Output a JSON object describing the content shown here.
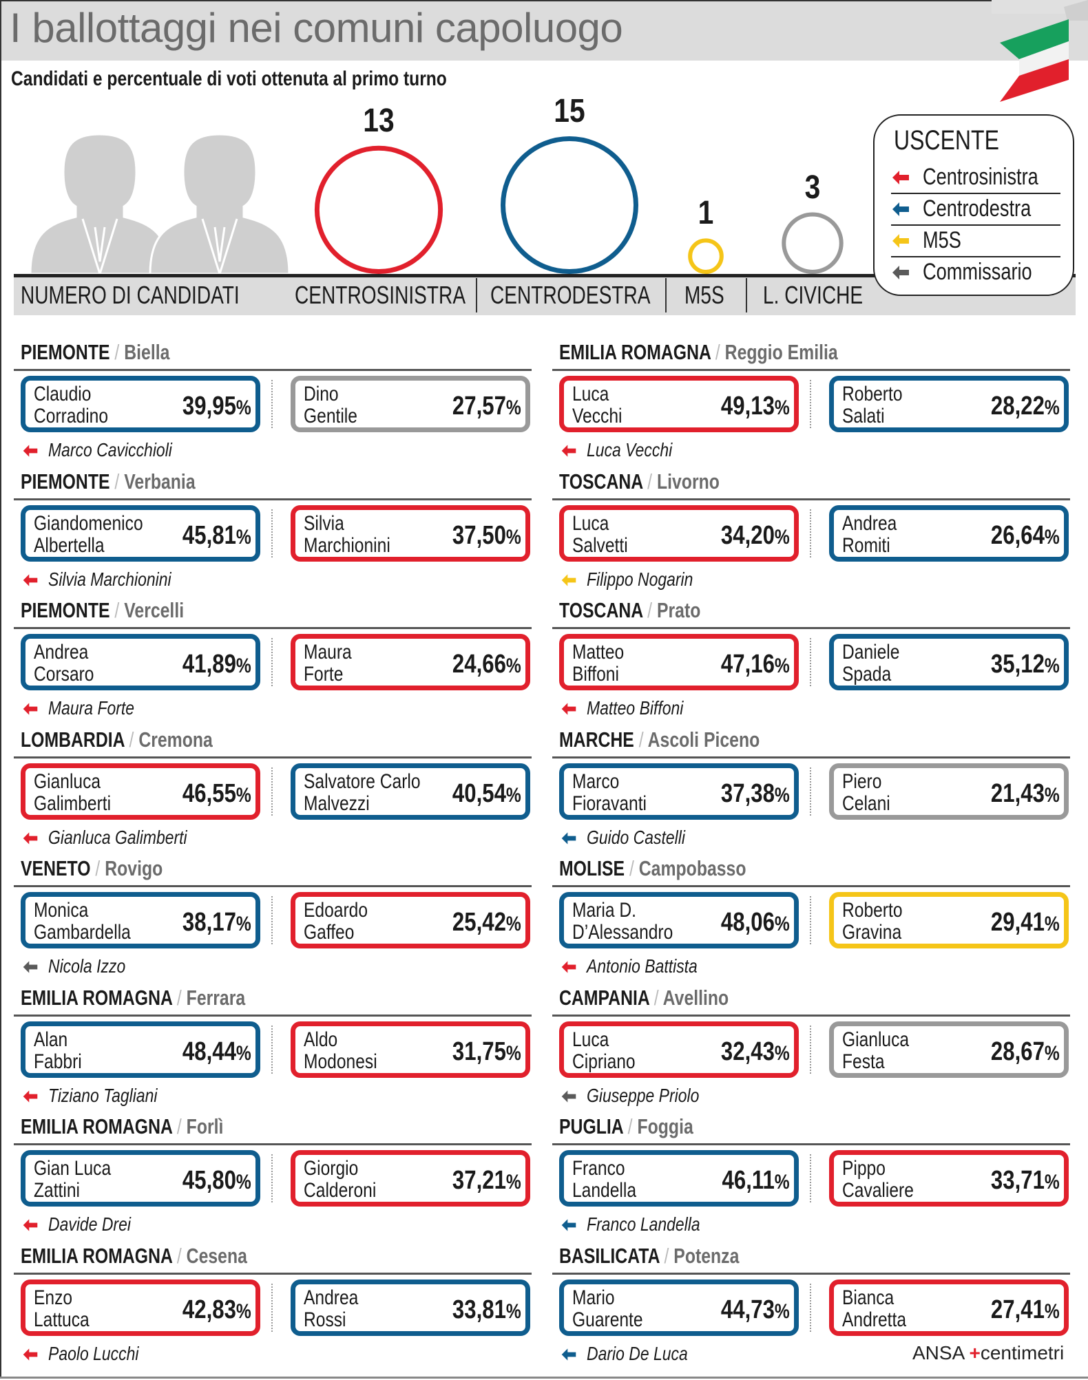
{
  "header": {
    "title": "I ballottaggi nei comuni capoluogo",
    "subtitle": "Candidati e percentuale di voti ottenuta al primo turno"
  },
  "colors": {
    "centrosinistra": "#e1202c",
    "centrodestra": "#0f5d8e",
    "m5s": "#f5c518",
    "civiche": "#999999",
    "commissario": "#5a5a5a"
  },
  "chart_data": {
    "type": "bubble",
    "title": "NUMERO DI CANDIDATI",
    "categories": [
      "CENTROSINISTRA",
      "CENTRODESTRA",
      "M5S",
      "L. CIVICHE"
    ],
    "values": [
      13,
      15,
      1,
      3
    ],
    "category_label": "NUMERO DI CANDIDATI"
  },
  "legend": {
    "title": "USCENTE",
    "items": [
      {
        "label": "Centrosinistra",
        "color": "#e1202c"
      },
      {
        "label": "Centrodestra",
        "color": "#0f5d8e"
      },
      {
        "label": "M5S",
        "color": "#f5c518"
      },
      {
        "label": "Commissario",
        "color": "#5a5a5a"
      }
    ]
  },
  "blocks": [
    {
      "region": "PIEMONTE",
      "city": "Biella",
      "c1": {
        "name1": "Claudio",
        "name2": "Corradino",
        "pct": "39,95",
        "party": "centrodestra"
      },
      "c2": {
        "name1": "Dino",
        "name2": "Gentile",
        "pct": "27,57",
        "party": "civiche"
      },
      "incumbent": {
        "name": "Marco Cavicchioli",
        "party": "centrosinistra"
      }
    },
    {
      "region": "EMILIA ROMAGNA",
      "city": "Reggio Emilia",
      "c1": {
        "name1": "Luca",
        "name2": "Vecchi",
        "pct": "49,13",
        "party": "centrosinistra"
      },
      "c2": {
        "name1": "Roberto",
        "name2": "Salati",
        "pct": "28,22",
        "party": "centrodestra"
      },
      "incumbent": {
        "name": "Luca Vecchi",
        "party": "centrosinistra"
      }
    },
    {
      "region": "PIEMONTE",
      "city": "Verbania",
      "c1": {
        "name1": "Giandomenico",
        "name2": "Albertella",
        "pct": "45,81",
        "party": "centrodestra"
      },
      "c2": {
        "name1": "Silvia",
        "name2": "Marchionini",
        "pct": "37,50",
        "party": "centrosinistra"
      },
      "incumbent": {
        "name": "Silvia Marchionini",
        "party": "centrosinistra"
      }
    },
    {
      "region": "TOSCANA",
      "city": "Livorno",
      "c1": {
        "name1": "Luca",
        "name2": "Salvetti",
        "pct": "34,20",
        "party": "centrosinistra"
      },
      "c2": {
        "name1": "Andrea",
        "name2": "Romiti",
        "pct": "26,64",
        "party": "centrodestra"
      },
      "incumbent": {
        "name": "Filippo Nogarin",
        "party": "m5s"
      }
    },
    {
      "region": "PIEMONTE",
      "city": "Vercelli",
      "c1": {
        "name1": "Andrea",
        "name2": "Corsaro",
        "pct": "41,89",
        "party": "centrodestra"
      },
      "c2": {
        "name1": "Maura",
        "name2": "Forte",
        "pct": "24,66",
        "party": "centrosinistra"
      },
      "incumbent": {
        "name": "Maura Forte",
        "party": "centrosinistra"
      }
    },
    {
      "region": "TOSCANA",
      "city": "Prato",
      "c1": {
        "name1": "Matteo",
        "name2": "Biffoni",
        "pct": "47,16",
        "party": "centrosinistra"
      },
      "c2": {
        "name1": "Daniele",
        "name2": "Spada",
        "pct": "35,12",
        "party": "centrodestra"
      },
      "incumbent": {
        "name": "Matteo Biffoni",
        "party": "centrosinistra"
      }
    },
    {
      "region": "LOMBARDIA",
      "city": "Cremona",
      "c1": {
        "name1": "Gianluca",
        "name2": "Galimberti",
        "pct": "46,55",
        "party": "centrosinistra"
      },
      "c2": {
        "name1": "Salvatore Carlo",
        "name2": "Malvezzi",
        "pct": "40,54",
        "party": "centrodestra"
      },
      "incumbent": {
        "name": "Gianluca Galimberti",
        "party": "centrosinistra"
      }
    },
    {
      "region": "MARCHE",
      "city": "Ascoli Piceno",
      "c1": {
        "name1": "Marco",
        "name2": "Fioravanti",
        "pct": "37,38",
        "party": "centrodestra"
      },
      "c2": {
        "name1": "Piero",
        "name2": "Celani",
        "pct": "21,43",
        "party": "civiche"
      },
      "incumbent": {
        "name": "Guido Castelli",
        "party": "centrodestra"
      }
    },
    {
      "region": "VENETO",
      "city": "Rovigo",
      "c1": {
        "name1": "Monica",
        "name2": "Gambardella",
        "pct": "38,17",
        "party": "centrodestra"
      },
      "c2": {
        "name1": "Edoardo",
        "name2": "Gaffeo",
        "pct": "25,42",
        "party": "centrosinistra"
      },
      "incumbent": {
        "name": "Nicola Izzo",
        "party": "commissario"
      }
    },
    {
      "region": "MOLISE",
      "city": "Campobasso",
      "c1": {
        "name1": "Maria D.",
        "name2": "D’Alessandro",
        "pct": "48,06",
        "party": "centrodestra"
      },
      "c2": {
        "name1": "Roberto",
        "name2": "Gravina",
        "pct": "29,41",
        "party": "m5s"
      },
      "incumbent": {
        "name": "Antonio Battista",
        "party": "centrosinistra"
      }
    },
    {
      "region": "EMILIA ROMAGNA",
      "city": "Ferrara",
      "c1": {
        "name1": "Alan",
        "name2": "Fabbri",
        "pct": "48,44",
        "party": "centrodestra"
      },
      "c2": {
        "name1": "Aldo",
        "name2": "Modonesi",
        "pct": "31,75",
        "party": "centrosinistra"
      },
      "incumbent": {
        "name": "Tiziano Tagliani",
        "party": "centrosinistra"
      }
    },
    {
      "region": "CAMPANIA",
      "city": "Avellino",
      "c1": {
        "name1": "Luca",
        "name2": "Cipriano",
        "pct": "32,43",
        "party": "centrosinistra"
      },
      "c2": {
        "name1": "Gianluca",
        "name2": "Festa",
        "pct": "28,67",
        "party": "civiche"
      },
      "incumbent": {
        "name": "Giuseppe Priolo",
        "party": "commissario"
      }
    },
    {
      "region": "EMILIA ROMAGNA",
      "city": "Forlì",
      "c1": {
        "name1": "Gian Luca",
        "name2": "Zattini",
        "pct": "45,80",
        "party": "centrodestra"
      },
      "c2": {
        "name1": "Giorgio",
        "name2": "Calderoni",
        "pct": "37,21",
        "party": "centrosinistra"
      },
      "incumbent": {
        "name": "Davide Drei",
        "party": "centrosinistra"
      }
    },
    {
      "region": "PUGLIA",
      "city": "Foggia",
      "c1": {
        "name1": "Franco",
        "name2": "Landella",
        "pct": "46,11",
        "party": "centrodestra"
      },
      "c2": {
        "name1": "Pippo",
        "name2": "Cavaliere",
        "pct": "33,71",
        "party": "centrosinistra"
      },
      "incumbent": {
        "name": "Franco Landella",
        "party": "centrodestra"
      }
    },
    {
      "region": "EMILIA ROMAGNA",
      "city": "Cesena",
      "c1": {
        "name1": "Enzo",
        "name2": "Lattuca",
        "pct": "42,83",
        "party": "centrosinistra"
      },
      "c2": {
        "name1": "Andrea",
        "name2": "Rossi",
        "pct": "33,81",
        "party": "centrodestra"
      },
      "incumbent": {
        "name": "Paolo Lucchi",
        "party": "centrosinistra"
      }
    },
    {
      "region": "BASILICATA",
      "city": "Potenza",
      "c1": {
        "name1": "Mario",
        "name2": "Guarente",
        "pct": "44,73",
        "party": "centrodestra"
      },
      "c2": {
        "name1": "Bianca",
        "name2": "Andretta",
        "pct": "27,41",
        "party": "centrosinistra"
      },
      "incumbent": {
        "name": "Dario De Luca",
        "party": "centrodestra"
      }
    }
  ],
  "credit": {
    "ansa": "ANSA",
    "centimetri": "centimetri"
  },
  "symbols": {
    "slash": "/",
    "percent": "%"
  }
}
